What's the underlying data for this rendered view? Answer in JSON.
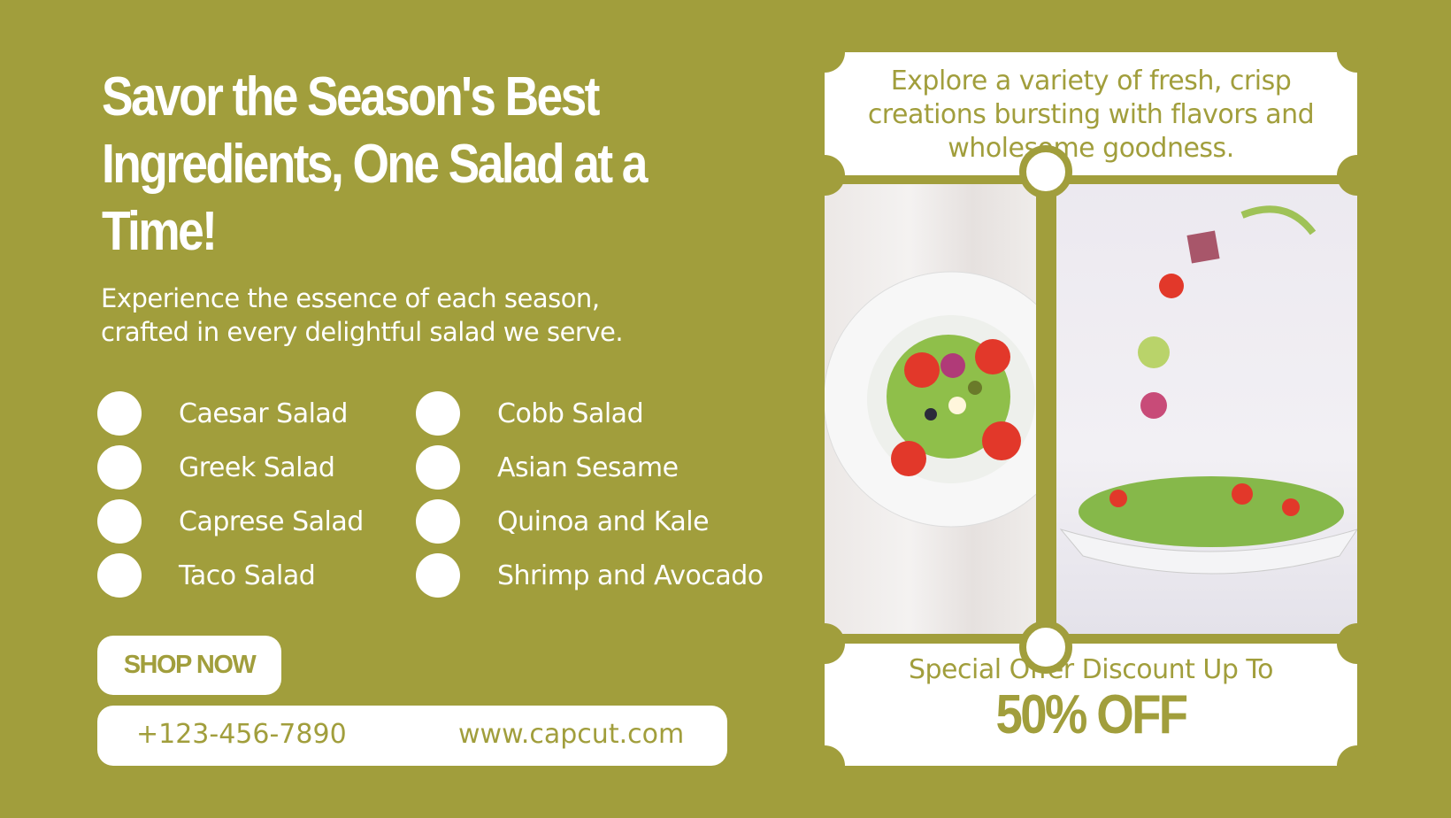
{
  "headline": "Savor the Season's Best Ingredients, One Salad at a Time!",
  "subtitle_line1": "Experience the essence of each season,",
  "subtitle_line2": "crafted in every delightful salad we serve.",
  "salads_left": [
    "Caesar Salad",
    "Greek Salad",
    "Caprese Salad",
    "Taco Salad"
  ],
  "salads_right": [
    "Cobb Salad",
    "Asian Sesame",
    "Quinoa and Kale",
    "Shrimp and Avocado"
  ],
  "shop_button": "SHOP NOW",
  "contact": {
    "phone": "+123-456-7890",
    "website": "www.capcut.com"
  },
  "top_ticket": {
    "line1": "Explore a variety of fresh, crisp",
    "line2": "creations bursting with flavors and",
    "line3": "wholesome goodness."
  },
  "offer": {
    "label": "Special Offer Discount Up To",
    "value": "50% OFF"
  },
  "colors": {
    "background": "#a19e3c",
    "card": "#ffffff"
  }
}
